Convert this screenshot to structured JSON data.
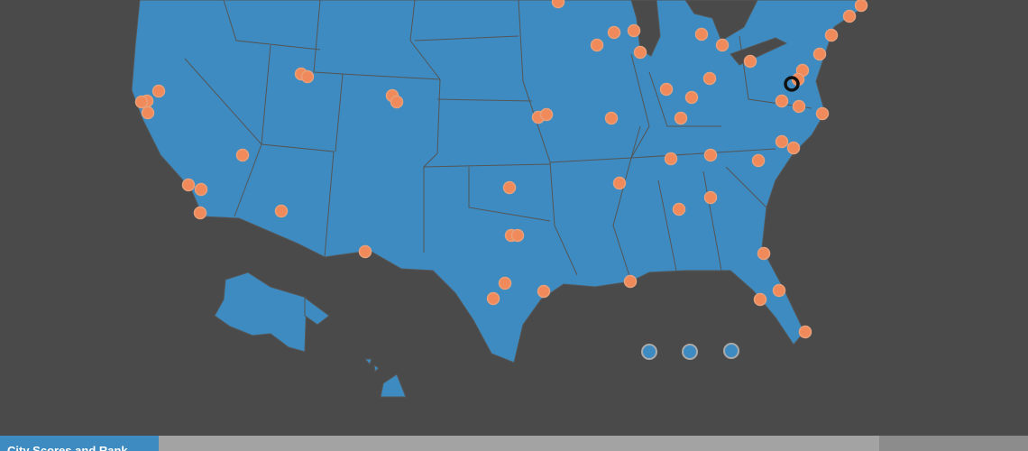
{
  "footer": {
    "tab": "City Scores and Rank"
  }
}
